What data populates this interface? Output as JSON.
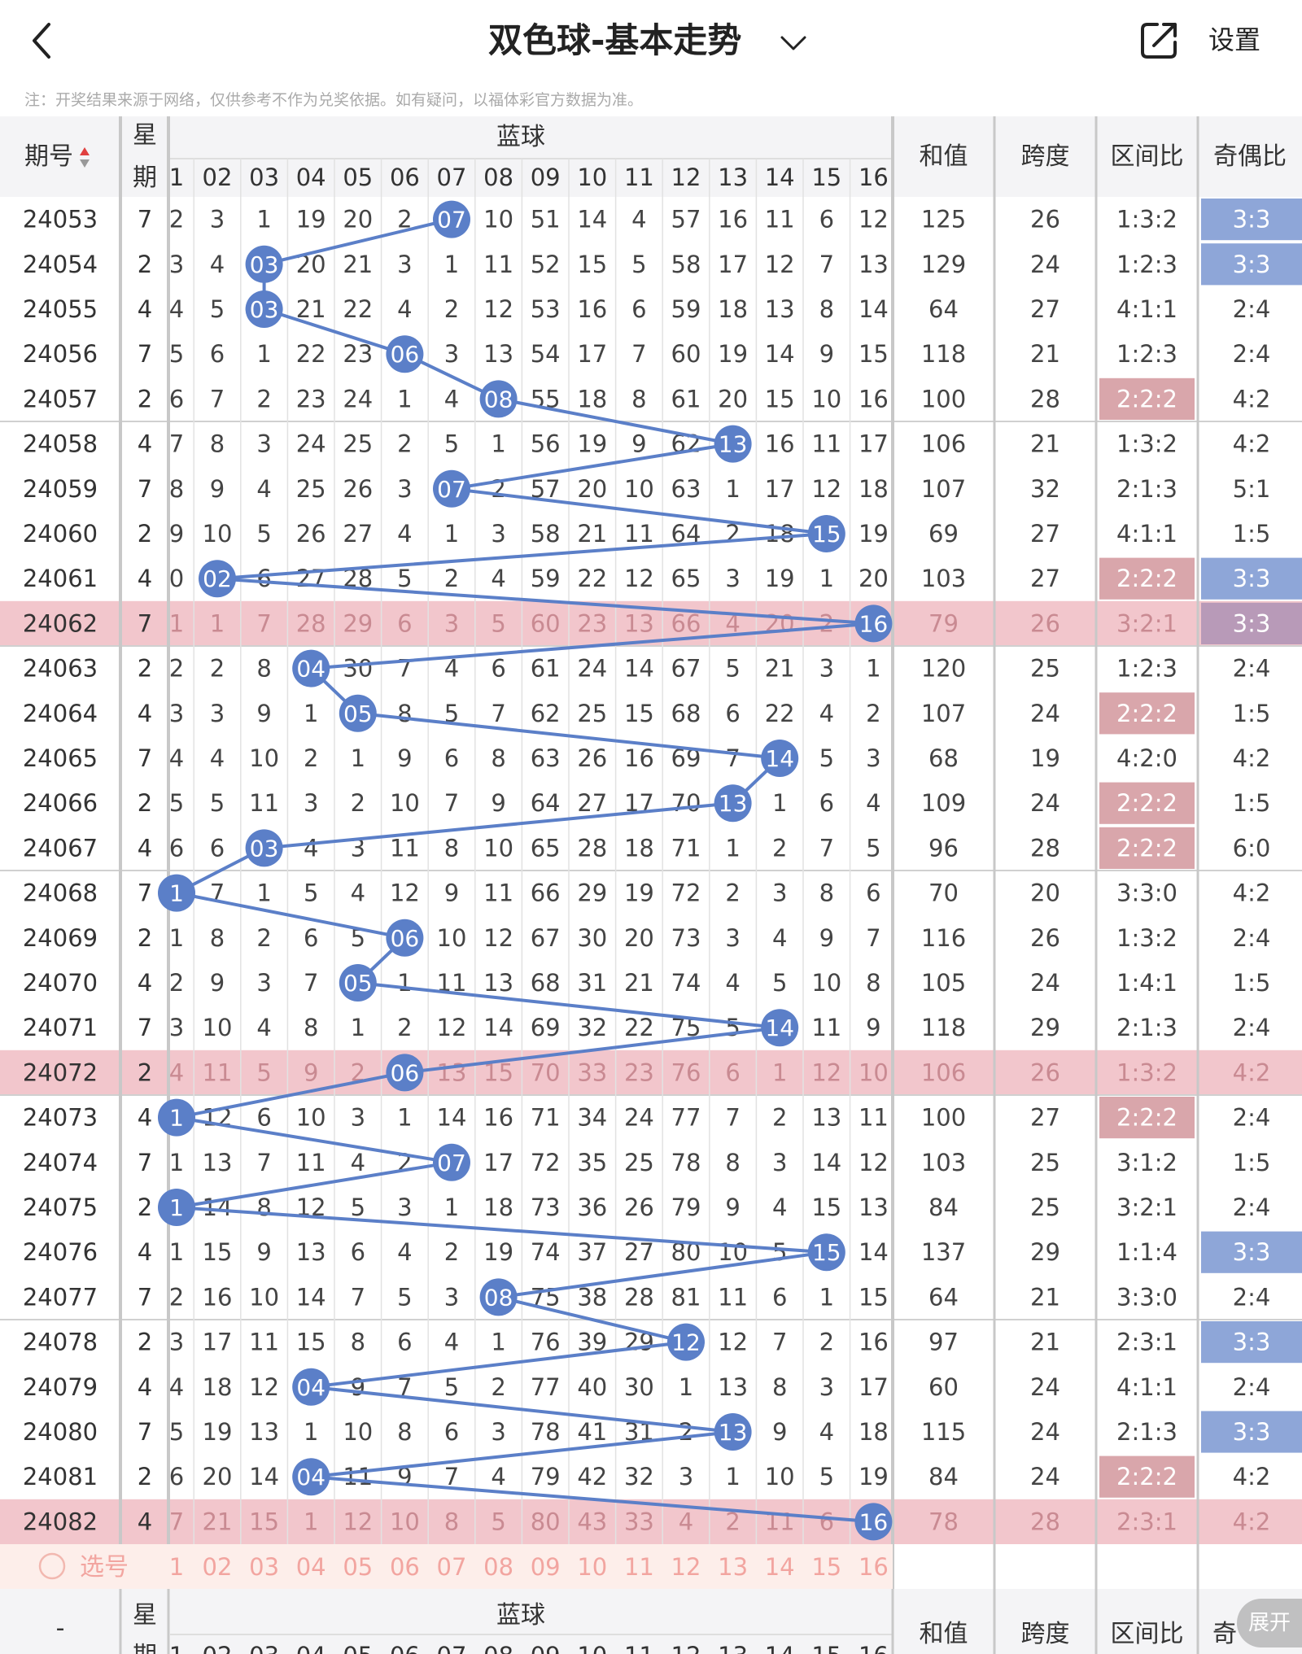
{
  "header": {
    "back_label": "back",
    "title": "双色球-基本走势",
    "settings_label": "设置"
  },
  "notice": "注：开奖结果来源于网络，仅供参考不作为兑奖依据。如有疑问，以福体彩官方数据为准。",
  "table": {
    "col_issue": "期号",
    "col_week": "星期",
    "col_blue": "蓝球",
    "col_sum": "和值",
    "col_span": "跨度",
    "col_zone": "区间比",
    "col_oddeven": "奇偶比",
    "ball_headers": [
      "1",
      "02",
      "03",
      "04",
      "05",
      "06",
      "07",
      "08",
      "09",
      "10",
      "11",
      "12",
      "13",
      "14",
      "15",
      "16"
    ],
    "rows": [
      {
        "issue": "24053",
        "week": "7",
        "cells": [
          "2",
          "3",
          "1",
          "19",
          "20",
          "2",
          "07",
          "10",
          "51",
          "14",
          "4",
          "57",
          "16",
          "11",
          "6",
          "12"
        ],
        "sum": "125",
        "span": "26",
        "zone": "1:3:2",
        "oddeven": "3:3",
        "zone_hl": false,
        "oe_hl": true,
        "row_hl": false,
        "hit": 7
      },
      {
        "issue": "24054",
        "week": "2",
        "cells": [
          "3",
          "4",
          "03",
          "20",
          "21",
          "3",
          "1",
          "11",
          "52",
          "15",
          "5",
          "58",
          "17",
          "12",
          "7",
          "13"
        ],
        "sum": "129",
        "span": "24",
        "zone": "1:2:3",
        "oddeven": "3:3",
        "zone_hl": false,
        "oe_hl": true,
        "row_hl": false,
        "hit": 3
      },
      {
        "issue": "24055",
        "week": "4",
        "cells": [
          "4",
          "5",
          "03",
          "21",
          "22",
          "4",
          "2",
          "12",
          "53",
          "16",
          "6",
          "59",
          "18",
          "13",
          "8",
          "14"
        ],
        "sum": "64",
        "span": "27",
        "zone": "4:1:1",
        "oddeven": "2:4",
        "zone_hl": false,
        "oe_hl": false,
        "row_hl": false,
        "hit": 3
      },
      {
        "issue": "24056",
        "week": "7",
        "cells": [
          "5",
          "6",
          "1",
          "22",
          "23",
          "06",
          "3",
          "13",
          "54",
          "17",
          "7",
          "60",
          "19",
          "14",
          "9",
          "15"
        ],
        "sum": "118",
        "span": "21",
        "zone": "1:2:3",
        "oddeven": "2:4",
        "zone_hl": false,
        "oe_hl": false,
        "row_hl": false,
        "hit": 6
      },
      {
        "issue": "24057",
        "week": "2",
        "cells": [
          "6",
          "7",
          "2",
          "23",
          "24",
          "1",
          "4",
          "08",
          "55",
          "18",
          "8",
          "61",
          "20",
          "15",
          "10",
          "16"
        ],
        "sum": "100",
        "span": "28",
        "zone": "2:2:2",
        "oddeven": "4:2",
        "zone_hl": true,
        "oe_hl": false,
        "row_hl": false,
        "hit": 8
      },
      {
        "issue": "24058",
        "week": "4",
        "cells": [
          "7",
          "8",
          "3",
          "24",
          "25",
          "2",
          "5",
          "1",
          "56",
          "19",
          "9",
          "62",
          "13",
          "16",
          "11",
          "17"
        ],
        "sum": "106",
        "span": "21",
        "zone": "1:3:2",
        "oddeven": "4:2",
        "zone_hl": false,
        "oe_hl": false,
        "row_hl": false,
        "hit": 13
      },
      {
        "issue": "24059",
        "week": "7",
        "cells": [
          "8",
          "9",
          "4",
          "25",
          "26",
          "3",
          "07",
          "2",
          "57",
          "20",
          "10",
          "63",
          "1",
          "17",
          "12",
          "18"
        ],
        "sum": "107",
        "span": "32",
        "zone": "2:1:3",
        "oddeven": "5:1",
        "zone_hl": false,
        "oe_hl": false,
        "row_hl": false,
        "hit": 7
      },
      {
        "issue": "24060",
        "week": "2",
        "cells": [
          "9",
          "10",
          "5",
          "26",
          "27",
          "4",
          "1",
          "3",
          "58",
          "21",
          "11",
          "64",
          "2",
          "18",
          "15",
          "19"
        ],
        "sum": "69",
        "span": "27",
        "zone": "4:1:1",
        "oddeven": "1:5",
        "zone_hl": false,
        "oe_hl": false,
        "row_hl": false,
        "hit": 15
      },
      {
        "issue": "24061",
        "week": "4",
        "cells": [
          "0",
          "02",
          "6",
          "27",
          "28",
          "5",
          "2",
          "4",
          "59",
          "22",
          "12",
          "65",
          "3",
          "19",
          "1",
          "20"
        ],
        "sum": "103",
        "span": "27",
        "zone": "2:2:2",
        "oddeven": "3:3",
        "zone_hl": true,
        "oe_hl": true,
        "row_hl": false,
        "hit": 2
      },
      {
        "issue": "24062",
        "week": "7",
        "cells": [
          "1",
          "1",
          "7",
          "28",
          "29",
          "6",
          "3",
          "5",
          "60",
          "23",
          "13",
          "66",
          "4",
          "20",
          "2",
          "16"
        ],
        "sum": "79",
        "span": "26",
        "zone": "3:2:1",
        "oddeven": "3:3",
        "zone_hl": false,
        "oe_hl": true,
        "row_hl": true,
        "hit": 16
      },
      {
        "issue": "24063",
        "week": "2",
        "cells": [
          "2",
          "2",
          "8",
          "04",
          "30",
          "7",
          "4",
          "6",
          "61",
          "24",
          "14",
          "67",
          "5",
          "21",
          "3",
          "1"
        ],
        "sum": "120",
        "span": "25",
        "zone": "1:2:3",
        "oddeven": "2:4",
        "zone_hl": false,
        "oe_hl": false,
        "row_hl": false,
        "hit": 4
      },
      {
        "issue": "24064",
        "week": "4",
        "cells": [
          "3",
          "3",
          "9",
          "1",
          "05",
          "8",
          "5",
          "7",
          "62",
          "25",
          "15",
          "68",
          "6",
          "22",
          "4",
          "2"
        ],
        "sum": "107",
        "span": "24",
        "zone": "2:2:2",
        "oddeven": "1:5",
        "zone_hl": true,
        "oe_hl": false,
        "row_hl": false,
        "hit": 5
      },
      {
        "issue": "24065",
        "week": "7",
        "cells": [
          "4",
          "4",
          "10",
          "2",
          "1",
          "9",
          "6",
          "8",
          "63",
          "26",
          "16",
          "69",
          "7",
          "14",
          "5",
          "3"
        ],
        "sum": "68",
        "span": "19",
        "zone": "4:2:0",
        "oddeven": "4:2",
        "zone_hl": false,
        "oe_hl": false,
        "row_hl": false,
        "hit": 14
      },
      {
        "issue": "24066",
        "week": "2",
        "cells": [
          "5",
          "5",
          "11",
          "3",
          "2",
          "10",
          "7",
          "9",
          "64",
          "27",
          "17",
          "70",
          "13",
          "1",
          "6",
          "4"
        ],
        "sum": "109",
        "span": "24",
        "zone": "2:2:2",
        "oddeven": "1:5",
        "zone_hl": true,
        "oe_hl": false,
        "row_hl": false,
        "hit": 13
      },
      {
        "issue": "24067",
        "week": "4",
        "cells": [
          "6",
          "6",
          "03",
          "4",
          "3",
          "11",
          "8",
          "10",
          "65",
          "28",
          "18",
          "71",
          "1",
          "2",
          "7",
          "5"
        ],
        "sum": "96",
        "span": "28",
        "zone": "2:2:2",
        "oddeven": "6:0",
        "zone_hl": true,
        "oe_hl": false,
        "row_hl": false,
        "hit": 3
      },
      {
        "issue": "24068",
        "week": "7",
        "cells": [
          "1",
          "7",
          "1",
          "5",
          "4",
          "12",
          "9",
          "11",
          "66",
          "29",
          "19",
          "72",
          "2",
          "3",
          "8",
          "6"
        ],
        "sum": "70",
        "span": "20",
        "zone": "3:3:0",
        "oddeven": "4:2",
        "zone_hl": false,
        "oe_hl": false,
        "row_hl": false,
        "hit": 1
      },
      {
        "issue": "24069",
        "week": "2",
        "cells": [
          "1",
          "8",
          "2",
          "6",
          "5",
          "06",
          "10",
          "12",
          "67",
          "30",
          "20",
          "73",
          "3",
          "4",
          "9",
          "7"
        ],
        "sum": "116",
        "span": "26",
        "zone": "1:3:2",
        "oddeven": "2:4",
        "zone_hl": false,
        "oe_hl": false,
        "row_hl": false,
        "hit": 6
      },
      {
        "issue": "24070",
        "week": "4",
        "cells": [
          "2",
          "9",
          "3",
          "7",
          "05",
          "1",
          "11",
          "13",
          "68",
          "31",
          "21",
          "74",
          "4",
          "5",
          "10",
          "8"
        ],
        "sum": "105",
        "span": "24",
        "zone": "1:4:1",
        "oddeven": "1:5",
        "zone_hl": false,
        "oe_hl": false,
        "row_hl": false,
        "hit": 5
      },
      {
        "issue": "24071",
        "week": "7",
        "cells": [
          "3",
          "10",
          "4",
          "8",
          "1",
          "2",
          "12",
          "14",
          "69",
          "32",
          "22",
          "75",
          "5",
          "14",
          "11",
          "9"
        ],
        "sum": "118",
        "span": "29",
        "zone": "2:1:3",
        "oddeven": "2:4",
        "zone_hl": false,
        "oe_hl": false,
        "row_hl": false,
        "hit": 14
      },
      {
        "issue": "24072",
        "week": "2",
        "cells": [
          "4",
          "11",
          "5",
          "9",
          "2",
          "06",
          "13",
          "15",
          "70",
          "33",
          "23",
          "76",
          "6",
          "1",
          "12",
          "10"
        ],
        "sum": "106",
        "span": "26",
        "zone": "1:3:2",
        "oddeven": "4:2",
        "zone_hl": false,
        "oe_hl": false,
        "row_hl": true,
        "hit": 6
      },
      {
        "issue": "24073",
        "week": "4",
        "cells": [
          "1",
          "12",
          "6",
          "10",
          "3",
          "1",
          "14",
          "16",
          "71",
          "34",
          "24",
          "77",
          "7",
          "2",
          "13",
          "11"
        ],
        "sum": "100",
        "span": "27",
        "zone": "2:2:2",
        "oddeven": "2:4",
        "zone_hl": true,
        "oe_hl": false,
        "row_hl": false,
        "hit": 1
      },
      {
        "issue": "24074",
        "week": "7",
        "cells": [
          "1",
          "13",
          "7",
          "11",
          "4",
          "2",
          "07",
          "17",
          "72",
          "35",
          "25",
          "78",
          "8",
          "3",
          "14",
          "12"
        ],
        "sum": "103",
        "span": "25",
        "zone": "3:1:2",
        "oddeven": "1:5",
        "zone_hl": false,
        "oe_hl": false,
        "row_hl": false,
        "hit": 7
      },
      {
        "issue": "24075",
        "week": "2",
        "cells": [
          "1",
          "14",
          "8",
          "12",
          "5",
          "3",
          "1",
          "18",
          "73",
          "36",
          "26",
          "79",
          "9",
          "4",
          "15",
          "13"
        ],
        "sum": "84",
        "span": "25",
        "zone": "3:2:1",
        "oddeven": "2:4",
        "zone_hl": false,
        "oe_hl": false,
        "row_hl": false,
        "hit": 1
      },
      {
        "issue": "24076",
        "week": "4",
        "cells": [
          "1",
          "15",
          "9",
          "13",
          "6",
          "4",
          "2",
          "19",
          "74",
          "37",
          "27",
          "80",
          "10",
          "5",
          "15",
          "14"
        ],
        "sum": "137",
        "span": "29",
        "zone": "1:1:4",
        "oddeven": "3:3",
        "zone_hl": false,
        "oe_hl": true,
        "row_hl": false,
        "hit": 15
      },
      {
        "issue": "24077",
        "week": "7",
        "cells": [
          "2",
          "16",
          "10",
          "14",
          "7",
          "5",
          "3",
          "08",
          "75",
          "38",
          "28",
          "81",
          "11",
          "6",
          "1",
          "15"
        ],
        "sum": "64",
        "span": "21",
        "zone": "3:3:0",
        "oddeven": "2:4",
        "zone_hl": false,
        "oe_hl": false,
        "row_hl": false,
        "hit": 8
      },
      {
        "issue": "24078",
        "week": "2",
        "cells": [
          "3",
          "17",
          "11",
          "15",
          "8",
          "6",
          "4",
          "1",
          "76",
          "39",
          "29",
          "12",
          "12",
          "7",
          "2",
          "16"
        ],
        "sum": "97",
        "span": "21",
        "zone": "2:3:1",
        "oddeven": "3:3",
        "zone_hl": false,
        "oe_hl": true,
        "row_hl": false,
        "hit": 12
      },
      {
        "issue": "24079",
        "week": "4",
        "cells": [
          "4",
          "18",
          "12",
          "04",
          "9",
          "7",
          "5",
          "2",
          "77",
          "40",
          "30",
          "1",
          "13",
          "8",
          "3",
          "17"
        ],
        "sum": "60",
        "span": "24",
        "zone": "4:1:1",
        "oddeven": "2:4",
        "zone_hl": false,
        "oe_hl": false,
        "row_hl": false,
        "hit": 4
      },
      {
        "issue": "24080",
        "week": "7",
        "cells": [
          "5",
          "19",
          "13",
          "1",
          "10",
          "8",
          "6",
          "3",
          "78",
          "41",
          "31",
          "2",
          "13",
          "9",
          "4",
          "18"
        ],
        "sum": "115",
        "span": "24",
        "zone": "2:1:3",
        "oddeven": "3:3",
        "zone_hl": false,
        "oe_hl": true,
        "row_hl": false,
        "hit": 13
      },
      {
        "issue": "24081",
        "week": "2",
        "cells": [
          "6",
          "20",
          "14",
          "04",
          "11",
          "9",
          "7",
          "4",
          "79",
          "42",
          "32",
          "3",
          "1",
          "10",
          "5",
          "19"
        ],
        "sum": "84",
        "span": "24",
        "zone": "2:2:2",
        "oddeven": "4:2",
        "zone_hl": true,
        "oe_hl": false,
        "row_hl": false,
        "hit": 4
      },
      {
        "issue": "24082",
        "week": "4",
        "cells": [
          "7",
          "21",
          "15",
          "1",
          "12",
          "10",
          "8",
          "5",
          "80",
          "43",
          "33",
          "4",
          "2",
          "11",
          "6",
          "16"
        ],
        "sum": "78",
        "span": "28",
        "zone": "2:3:1",
        "oddeven": "4:2",
        "zone_hl": false,
        "oe_hl": false,
        "row_hl": true,
        "hit": 16
      }
    ],
    "select_label": "选号",
    "footer_issue": "-",
    "footer_oddeven_partial": "奇"
  },
  "expand_label": "展开",
  "colors": {
    "ball": "#5b7fc8",
    "line": "#5b7fc8",
    "row_highlight": "#f2c6cc",
    "zone_highlight": "#d9a6ab",
    "oe_highlight": "#8ea6d8",
    "oe_highlight_on_pink": "#b89ab8",
    "select_row": "#fdeeea",
    "select_text": "#f2a5a0",
    "header_bg": "#f4f4f6"
  }
}
